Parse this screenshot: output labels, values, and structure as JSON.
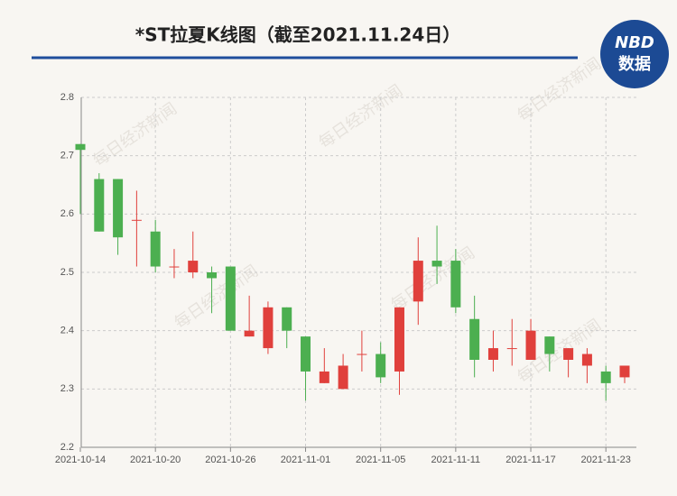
{
  "chart_data": {
    "type": "candlestick",
    "title": "*ST拉夏K线图（截至2021.11.24日）",
    "logo": {
      "brand": "NBD",
      "label": "数据"
    },
    "watermark": "每日经济新闻",
    "x": [
      "2021-10-14",
      null,
      null,
      null,
      "2021-10-20",
      null,
      null,
      null,
      "2021-10-26",
      null,
      null,
      null,
      "2021-11-01",
      null,
      null,
      null,
      "2021-11-05",
      null,
      null,
      null,
      "2021-11-11",
      null,
      null,
      null,
      "2021-11-17",
      null,
      null,
      null,
      "2021-11-23",
      null
    ],
    "series": [
      {
        "name": "open",
        "values": [
          2.72,
          2.66,
          2.66,
          2.59,
          2.57,
          2.51,
          2.5,
          2.5,
          2.51,
          2.39,
          2.37,
          2.44,
          2.39,
          2.31,
          2.3,
          2.36,
          2.36,
          2.33,
          2.45,
          2.52,
          2.52,
          2.42,
          2.35,
          2.37,
          2.35,
          2.39,
          2.35,
          2.34,
          2.33,
          2.32
        ]
      },
      {
        "name": "high",
        "values": [
          2.72,
          2.67,
          2.66,
          2.64,
          2.59,
          2.54,
          2.57,
          2.51,
          2.51,
          2.46,
          2.45,
          2.44,
          2.39,
          2.37,
          2.36,
          2.4,
          2.38,
          2.44,
          2.56,
          2.58,
          2.54,
          2.46,
          2.4,
          2.42,
          2.42,
          2.39,
          2.37,
          2.37,
          2.34,
          2.34
        ]
      },
      {
        "name": "low",
        "values": [
          2.6,
          2.57,
          2.53,
          2.51,
          2.5,
          2.49,
          2.49,
          2.43,
          2.4,
          2.39,
          2.36,
          2.37,
          2.28,
          2.31,
          2.3,
          2.33,
          2.31,
          2.29,
          2.41,
          2.48,
          2.43,
          2.32,
          2.33,
          2.34,
          2.35,
          2.33,
          2.32,
          2.31,
          2.28,
          2.31
        ]
      },
      {
        "name": "close",
        "values": [
          2.71,
          2.57,
          2.56,
          2.59,
          2.51,
          2.51,
          2.52,
          2.49,
          2.4,
          2.4,
          2.44,
          2.4,
          2.33,
          2.33,
          2.34,
          2.36,
          2.32,
          2.44,
          2.52,
          2.51,
          2.44,
          2.35,
          2.37,
          2.37,
          2.4,
          2.36,
          2.37,
          2.36,
          2.31,
          2.34
        ]
      }
    ],
    "up_color": "#e0403c",
    "down_color": "#4caf50",
    "ylim": [
      2.2,
      2.8
    ],
    "yticks": [
      2.2,
      2.3,
      2.4,
      2.5,
      2.6,
      2.7,
      2.8
    ],
    "grid": true
  }
}
